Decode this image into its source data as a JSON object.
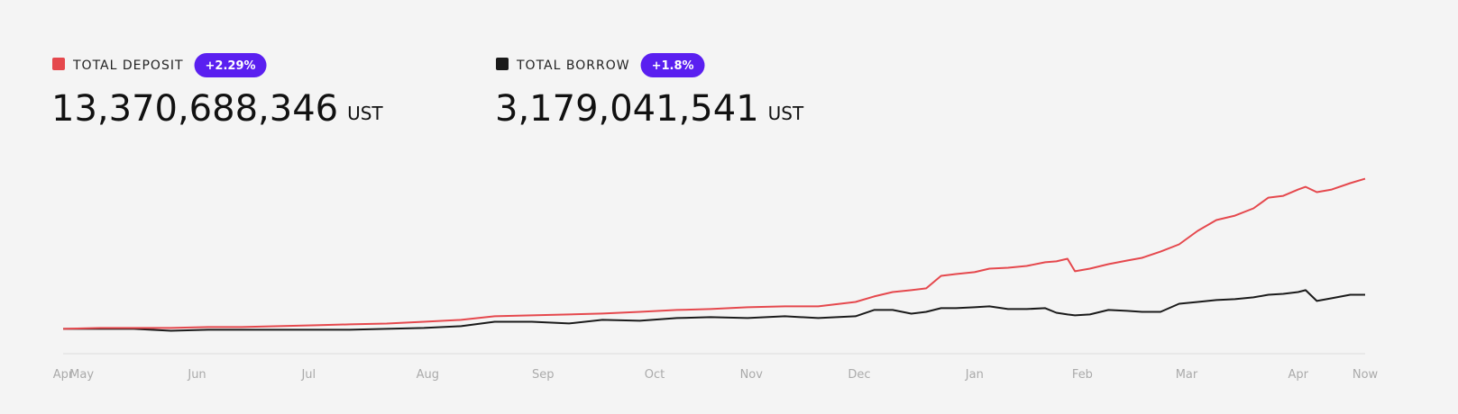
{
  "chart_data": {
    "type": "line",
    "x": [
      0,
      10,
      19,
      29,
      39,
      48,
      58,
      68,
      77,
      87,
      97,
      107,
      116,
      126,
      136,
      145,
      155,
      165,
      174,
      184,
      194,
      203,
      213,
      218,
      223,
      228,
      232,
      236,
      240,
      245,
      249,
      254,
      259,
      264,
      267,
      270,
      272,
      276,
      281,
      286,
      290,
      295,
      300,
      305,
      310,
      315,
      320,
      324,
      328,
      332,
      334,
      337,
      341,
      346,
      350
    ],
    "xlim": [
      0,
      350
    ],
    "xticks": [
      {
        "value": 0,
        "label": "Apr"
      },
      {
        "value": 5,
        "label": "May"
      },
      {
        "value": 36,
        "label": "Jun"
      },
      {
        "value": 66,
        "label": "Jul"
      },
      {
        "value": 98,
        "label": "Aug"
      },
      {
        "value": 129,
        "label": "Sep"
      },
      {
        "value": 159,
        "label": "Oct"
      },
      {
        "value": 185,
        "label": "Nov"
      },
      {
        "value": 214,
        "label": "Dec"
      },
      {
        "value": 245,
        "label": "Jan"
      },
      {
        "value": 274,
        "label": "Feb"
      },
      {
        "value": 302,
        "label": "Mar"
      },
      {
        "value": 332,
        "label": "Apr"
      },
      {
        "value": 350,
        "label": "Now"
      }
    ],
    "ylim": [
      -2,
      15
    ],
    "series": [
      {
        "name": "TOTAL DEPOSIT",
        "color": "#e5484d",
        "change": "+2.29%",
        "total": "13,370,688,346",
        "unit": "UST",
        "values": [
          0.18,
          0.26,
          0.26,
          0.26,
          0.34,
          0.34,
          0.42,
          0.5,
          0.58,
          0.65,
          0.81,
          0.97,
          1.29,
          1.37,
          1.45,
          1.53,
          1.68,
          1.84,
          1.92,
          2.08,
          2.16,
          2.16,
          2.55,
          3.03,
          3.42,
          3.58,
          3.74,
          4.84,
          5.0,
          5.16,
          5.47,
          5.55,
          5.71,
          6.03,
          6.11,
          6.34,
          5.24,
          5.47,
          5.87,
          6.18,
          6.42,
          6.97,
          7.61,
          8.79,
          9.74,
          10.13,
          10.77,
          11.71,
          11.87,
          12.42,
          12.66,
          12.19,
          12.42,
          12.98,
          13.37
        ]
      },
      {
        "name": "TOTAL BORROW",
        "color": "#1a1a1a",
        "change": "+1.8%",
        "total": "3,179,041,541",
        "unit": "UST",
        "values": [
          0.18,
          0.18,
          0.18,
          0.02,
          0.1,
          0.1,
          0.1,
          0.1,
          0.1,
          0.18,
          0.26,
          0.42,
          0.81,
          0.81,
          0.66,
          0.97,
          0.89,
          1.13,
          1.21,
          1.13,
          1.29,
          1.13,
          1.29,
          1.84,
          1.84,
          1.52,
          1.68,
          2.0,
          2.0,
          2.08,
          2.16,
          1.92,
          1.92,
          2.0,
          1.6,
          1.45,
          1.37,
          1.45,
          1.84,
          1.76,
          1.68,
          1.68,
          2.39,
          2.55,
          2.71,
          2.79,
          2.95,
          3.18,
          3.26,
          3.42,
          3.58,
          2.63,
          2.87,
          3.18,
          3.18
        ]
      }
    ],
    "badge_color": "#5a1ff0"
  }
}
